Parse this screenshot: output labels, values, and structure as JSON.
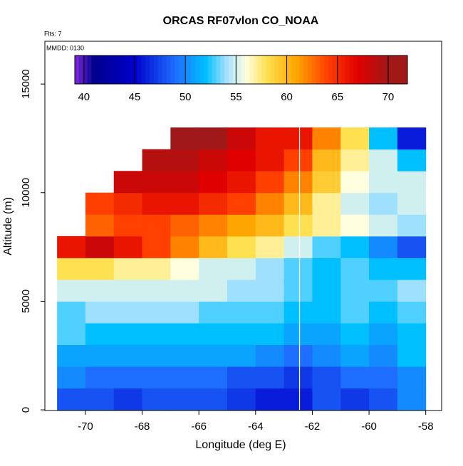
{
  "chart_data": {
    "type": "heatmap",
    "title": "ORCAS RF07vlon CO_NOAA",
    "flights_label": "Flts: 7",
    "date_label": "MMDD: 0130",
    "xlabel": "Longitude (deg E)",
    "ylabel": "Altitude (m)",
    "xlim": [
      -71.43,
      -57.44
    ],
    "ylim": [
      -30,
      16970
    ],
    "xticks": [
      -70,
      -68,
      -66,
      -64,
      -62,
      -60,
      -58
    ],
    "yticks": [
      0,
      5000,
      10000,
      15000
    ],
    "x": [
      -70.5,
      -69.5,
      -68.5,
      -67.5,
      -66.5,
      -65.5,
      -64.5,
      -63.5,
      -62.5,
      -61.5,
      -60.5,
      -59.5,
      -58.5
    ],
    "y": [
      500,
      1500,
      2500,
      3500,
      4500,
      5500,
      6500,
      7500,
      8500,
      9500,
      10500,
      11500,
      12500
    ],
    "z": [
      [
        48,
        48,
        47,
        48,
        48,
        48,
        47,
        46,
        46,
        48,
        47,
        48,
        50
      ],
      [
        50,
        49,
        49,
        49,
        49,
        49,
        48,
        48,
        47,
        48,
        49,
        49,
        50
      ],
      [
        51,
        51,
        51,
        51,
        51,
        51,
        51,
        50,
        49,
        50,
        51,
        50,
        52
      ],
      [
        53,
        52,
        52,
        52,
        52,
        52,
        52,
        52,
        51,
        51,
        52,
        51,
        52
      ],
      [
        53,
        54,
        54,
        54,
        54,
        53,
        53,
        53,
        52,
        52,
        53,
        52,
        53
      ],
      [
        55,
        55,
        55,
        55,
        55,
        55,
        54,
        54,
        53,
        52,
        53,
        53,
        54
      ],
      [
        58,
        58,
        57,
        57,
        56,
        55,
        55,
        54,
        53,
        52,
        53,
        52,
        52
      ],
      [
        66,
        68,
        66,
        64,
        62,
        60,
        58,
        57,
        55,
        53,
        52,
        50,
        48
      ],
      [
        null,
        63,
        64,
        64,
        63,
        62,
        61,
        60,
        58,
        57,
        56,
        55,
        54
      ],
      [
        null,
        64,
        65,
        66,
        66,
        65,
        64,
        62,
        60,
        57,
        55,
        54,
        55
      ],
      [
        null,
        null,
        68,
        68,
        68,
        67,
        66,
        64,
        62,
        59,
        56,
        55,
        55
      ],
      [
        null,
        null,
        null,
        69,
        69,
        68,
        67,
        66,
        64,
        60,
        57,
        55,
        52
      ],
      [
        null,
        null,
        null,
        null,
        70,
        70,
        68,
        66,
        66,
        62,
        58,
        52,
        46
      ]
    ],
    "track_lon": -62.45,
    "colorbar_lim": [
      39.1,
      71.9
    ],
    "colorbar_ticks": [
      40,
      45,
      50,
      55,
      60,
      65,
      70
    ],
    "colorscale": [
      [
        39,
        "#8a2be2"
      ],
      [
        41,
        "#00008b"
      ],
      [
        45,
        "#0000cd"
      ],
      [
        49,
        "#1e6fff"
      ],
      [
        52,
        "#00bfff"
      ],
      [
        54,
        "#a0e0ff"
      ],
      [
        56,
        "#ffffe0"
      ],
      [
        58,
        "#ffe050"
      ],
      [
        61,
        "#ffa500"
      ],
      [
        64,
        "#ff4000"
      ],
      [
        67,
        "#e00000"
      ],
      [
        70,
        "#a01818"
      ],
      [
        72,
        "#a01818"
      ]
    ]
  }
}
